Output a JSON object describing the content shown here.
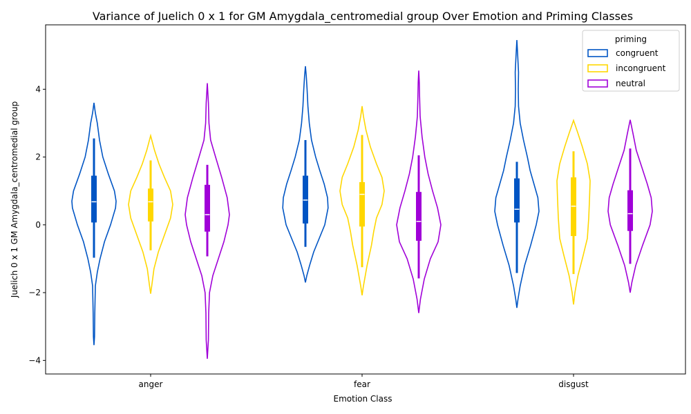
{
  "chart_data": {
    "type": "violin",
    "title": "Variance of Juelich 0 x 1 for GM Amygdala_centromedial group Over Emotion and Priming Classes",
    "xlabel": "Emotion Class",
    "ylabel": "Juelich 0 x 1 GM Amygdala_centromedial group",
    "ylim": [
      -4.4,
      5.9
    ],
    "yticks": [
      -4,
      -2,
      0,
      2,
      4
    ],
    "categories": [
      "anger",
      "fear",
      "disgust"
    ],
    "legend": {
      "title": "priming",
      "position": "upper right"
    },
    "series": [
      {
        "name": "congruent",
        "color": "#0055c4",
        "stats": [
          {
            "min": -3.55,
            "max": 3.6,
            "q1": 0.07,
            "median": 0.68,
            "q3": 1.45,
            "wlo": -0.97,
            "whi": 2.55,
            "profile": [
              [
                -3.55,
                0.0
              ],
              [
                -3.3,
                0.02
              ],
              [
                -2.6,
                0.03
              ],
              [
                -1.8,
                0.05
              ],
              [
                -1.4,
                0.12
              ],
              [
                -1.0,
                0.22
              ],
              [
                -0.5,
                0.38
              ],
              [
                0.0,
                0.6
              ],
              [
                0.5,
                0.78
              ],
              [
                0.7,
                0.8
              ],
              [
                1.0,
                0.74
              ],
              [
                1.5,
                0.52
              ],
              [
                2.0,
                0.32
              ],
              [
                2.5,
                0.2
              ],
              [
                3.0,
                0.12
              ],
              [
                3.3,
                0.05
              ],
              [
                3.6,
                0.0
              ]
            ]
          },
          {
            "min": -1.7,
            "max": 4.68,
            "q1": 0.04,
            "median": 0.73,
            "q3": 1.45,
            "wlo": -0.65,
            "whi": 2.5,
            "profile": [
              [
                -1.7,
                0.0
              ],
              [
                -1.5,
                0.05
              ],
              [
                -1.2,
                0.15
              ],
              [
                -0.8,
                0.3
              ],
              [
                -0.4,
                0.5
              ],
              [
                0.0,
                0.7
              ],
              [
                0.5,
                0.82
              ],
              [
                0.8,
                0.8
              ],
              [
                1.2,
                0.68
              ],
              [
                1.6,
                0.52
              ],
              [
                2.0,
                0.37
              ],
              [
                2.5,
                0.22
              ],
              [
                3.0,
                0.14
              ],
              [
                3.5,
                0.09
              ],
              [
                4.0,
                0.06
              ],
              [
                4.4,
                0.03
              ],
              [
                4.68,
                0.0
              ]
            ]
          },
          {
            "min": -2.45,
            "max": 5.45,
            "q1": 0.07,
            "median": 0.46,
            "q3": 1.37,
            "wlo": -1.42,
            "whi": 1.86,
            "profile": [
              [
                -2.45,
                0.0
              ],
              [
                -2.2,
                0.04
              ],
              [
                -1.8,
                0.12
              ],
              [
                -1.2,
                0.28
              ],
              [
                -0.6,
                0.5
              ],
              [
                0.0,
                0.7
              ],
              [
                0.4,
                0.8
              ],
              [
                0.8,
                0.76
              ],
              [
                1.2,
                0.62
              ],
              [
                1.6,
                0.48
              ],
              [
                2.0,
                0.38
              ],
              [
                2.5,
                0.24
              ],
              [
                3.0,
                0.12
              ],
              [
                3.5,
                0.06
              ],
              [
                4.0,
                0.05
              ],
              [
                4.5,
                0.06
              ],
              [
                5.0,
                0.03
              ],
              [
                5.45,
                0.0
              ]
            ]
          }
        ]
      },
      {
        "name": "incongruent",
        "color": "#ffd700",
        "stats": [
          {
            "min": -2.03,
            "max": 2.63,
            "q1": 0.1,
            "median": 0.68,
            "q3": 1.07,
            "wlo": -0.75,
            "whi": 1.9,
            "profile": [
              [
                -2.03,
                0.0
              ],
              [
                -1.8,
                0.04
              ],
              [
                -1.3,
                0.12
              ],
              [
                -0.8,
                0.28
              ],
              [
                -0.3,
                0.5
              ],
              [
                0.2,
                0.72
              ],
              [
                0.6,
                0.8
              ],
              [
                1.0,
                0.72
              ],
              [
                1.4,
                0.5
              ],
              [
                1.8,
                0.3
              ],
              [
                2.2,
                0.14
              ],
              [
                2.63,
                0.0
              ]
            ]
          },
          {
            "min": -2.08,
            "max": 3.5,
            "q1": -0.05,
            "median": 0.9,
            "q3": 1.26,
            "wlo": -1.25,
            "whi": 2.65,
            "profile": [
              [
                -2.08,
                0.0
              ],
              [
                -1.8,
                0.05
              ],
              [
                -1.2,
                0.18
              ],
              [
                -0.6,
                0.34
              ],
              [
                -0.2,
                0.42
              ],
              [
                0.2,
                0.52
              ],
              [
                0.6,
                0.72
              ],
              [
                1.0,
                0.8
              ],
              [
                1.4,
                0.72
              ],
              [
                1.8,
                0.52
              ],
              [
                2.3,
                0.3
              ],
              [
                2.8,
                0.14
              ],
              [
                3.2,
                0.05
              ],
              [
                3.5,
                0.0
              ]
            ]
          },
          {
            "min": -2.35,
            "max": 3.08,
            "q1": -0.33,
            "median": 0.55,
            "q3": 1.4,
            "wlo": -1.45,
            "whi": 2.17,
            "profile": [
              [
                -2.35,
                0.0
              ],
              [
                -2.0,
                0.05
              ],
              [
                -1.5,
                0.16
              ],
              [
                -0.9,
                0.35
              ],
              [
                -0.4,
                0.5
              ],
              [
                0.2,
                0.55
              ],
              [
                0.8,
                0.58
              ],
              [
                1.3,
                0.6
              ],
              [
                1.8,
                0.5
              ],
              [
                2.3,
                0.32
              ],
              [
                2.7,
                0.16
              ],
              [
                3.08,
                0.0
              ]
            ]
          }
        ]
      },
      {
        "name": "neutral",
        "color": "#a000d8",
        "stats": [
          {
            "min": -3.95,
            "max": 4.18,
            "q1": -0.2,
            "median": 0.3,
            "q3": 1.18,
            "wlo": -0.93,
            "whi": 1.77,
            "profile": [
              [
                -3.95,
                0.0
              ],
              [
                -3.4,
                0.04
              ],
              [
                -2.6,
                0.05
              ],
              [
                -2.0,
                0.08
              ],
              [
                -1.5,
                0.2
              ],
              [
                -1.0,
                0.4
              ],
              [
                -0.5,
                0.6
              ],
              [
                0.0,
                0.75
              ],
              [
                0.3,
                0.8
              ],
              [
                0.8,
                0.72
              ],
              [
                1.4,
                0.52
              ],
              [
                2.0,
                0.3
              ],
              [
                2.5,
                0.12
              ],
              [
                3.0,
                0.06
              ],
              [
                3.6,
                0.04
              ],
              [
                4.18,
                0.0
              ]
            ]
          },
          {
            "min": -2.6,
            "max": 4.55,
            "q1": -0.47,
            "median": 0.1,
            "q3": 0.97,
            "wlo": -1.58,
            "whi": 2.05,
            "profile": [
              [
                -2.6,
                0.0
              ],
              [
                -2.2,
                0.06
              ],
              [
                -1.6,
                0.2
              ],
              [
                -1.0,
                0.42
              ],
              [
                -0.5,
                0.7
              ],
              [
                0.0,
                0.8
              ],
              [
                0.5,
                0.68
              ],
              [
                1.0,
                0.5
              ],
              [
                1.5,
                0.34
              ],
              [
                2.0,
                0.22
              ],
              [
                2.6,
                0.12
              ],
              [
                3.2,
                0.05
              ],
              [
                3.8,
                0.03
              ],
              [
                4.2,
                0.02
              ],
              [
                4.55,
                0.0
              ]
            ]
          },
          {
            "min": -2.0,
            "max": 3.1,
            "q1": -0.18,
            "median": 0.33,
            "q3": 1.02,
            "wlo": -1.15,
            "whi": 2.25,
            "profile": [
              [
                -2.0,
                0.0
              ],
              [
                -1.7,
                0.06
              ],
              [
                -1.2,
                0.2
              ],
              [
                -0.6,
                0.45
              ],
              [
                0.0,
                0.72
              ],
              [
                0.4,
                0.8
              ],
              [
                0.8,
                0.76
              ],
              [
                1.2,
                0.62
              ],
              [
                1.7,
                0.42
              ],
              [
                2.2,
                0.22
              ],
              [
                2.7,
                0.1
              ],
              [
                3.1,
                0.0
              ]
            ]
          }
        ]
      }
    ]
  }
}
